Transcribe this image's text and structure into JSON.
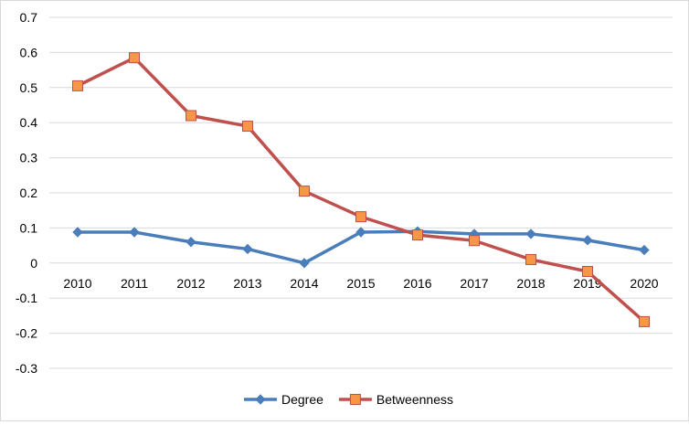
{
  "chart_data": {
    "type": "line",
    "title": "",
    "xlabel": "",
    "ylabel": "",
    "categories": [
      "2010",
      "2011",
      "2012",
      "2013",
      "2014",
      "2015",
      "2016",
      "2017",
      "2018",
      "2019",
      "2020"
    ],
    "ylim": [
      -0.3,
      0.7
    ],
    "ytick_values": [
      0.7,
      0.6,
      0.5,
      0.4,
      0.3,
      0.2,
      0.1,
      0,
      -0.1,
      -0.2,
      -0.3
    ],
    "ytick_labels": [
      "0.7",
      "0.6",
      "0.5",
      "0.4",
      "0.3",
      "0.2",
      "0.1",
      "0",
      "-0.1",
      "-0.2",
      "-0.3"
    ],
    "grid": true,
    "legend_position": "bottom",
    "series": [
      {
        "name": "Degree",
        "color": "#4a7ebb",
        "marker": "diamond",
        "values": [
          0.088,
          0.088,
          0.06,
          0.04,
          0.0,
          0.088,
          0.09,
          0.083,
          0.083,
          0.065,
          0.037
        ]
      },
      {
        "name": "Betweenness",
        "color": "#c0504d",
        "marker_fill": "#f79646",
        "marker": "square",
        "values": [
          0.505,
          0.585,
          0.42,
          0.39,
          0.205,
          0.132,
          0.08,
          0.064,
          0.01,
          -0.024,
          -0.167
        ]
      }
    ]
  }
}
